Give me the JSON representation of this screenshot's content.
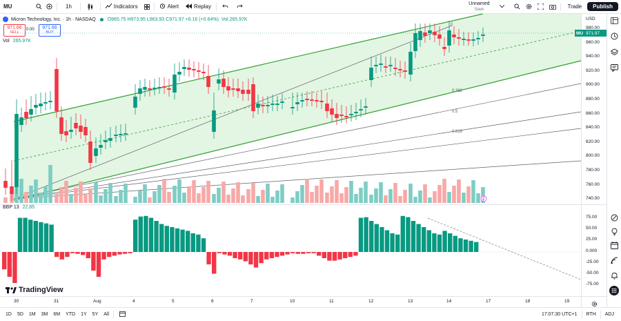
{
  "toolbar": {
    "symbol": "MU",
    "interval": "1h",
    "indicators_label": "Indicators",
    "alert_label": "Alert",
    "replay_label": "Replay",
    "unnamed_label": "Unnamed",
    "save_label": "Save",
    "trade_label": "Trade",
    "publish_label": "Publish"
  },
  "legend": {
    "title": "Micron Technology, Inc. · 1h · NASDAQ",
    "ohlc": "O965.75 H973.95 L963.93 C971.97 +6.16 (+0.64%)",
    "vol_inline": "Vol 265.97K",
    "sell_price": "971.66",
    "sell_label": "SELL",
    "spread": "0.00",
    "buy_price": "971.66",
    "buy_label": "BUY",
    "volume_label": "Vol",
    "volume_value": "265.97K"
  },
  "price_axis": {
    "currency": "USD",
    "ticks": [
      "980.00",
      "960.00",
      "940.00",
      "920.00",
      "900.00",
      "880.00",
      "860.00",
      "840.00",
      "820.00",
      "800.00",
      "780.00",
      "760.00",
      "740.00"
    ],
    "current_symbol": "MU",
    "current_price": "971.97"
  },
  "fib_labels": [
    "0",
    "0.382",
    "0.5",
    "0.618"
  ],
  "bbp": {
    "label": "BBP 13",
    "value": "22.85",
    "ticks": [
      "75.00",
      "50.00",
      "25.00",
      "0.000",
      "-25.00",
      "-50.00",
      "-75.00"
    ]
  },
  "time_axis": {
    "labels": [
      "30",
      "31",
      "Aug",
      "4",
      "5",
      "6",
      "7",
      "10",
      "11",
      "12",
      "13",
      "14",
      "17",
      "18",
      "19"
    ]
  },
  "bottombar": {
    "ranges": [
      "1D",
      "5D",
      "1M",
      "3M",
      "6M",
      "YTD",
      "1Y",
      "5Y",
      "All"
    ],
    "clock": "17:07:30 UTC+1",
    "session": "RTH",
    "adj": "ADJ"
  },
  "logo_text": "TradingView",
  "colors": {
    "up": "#089981",
    "down": "#f23645",
    "up_vol": "#7ecdc4",
    "down_vol": "#f7a9a7",
    "channel_fill": "#d9f2d9",
    "channel_line": "#2e9e2e"
  }
}
